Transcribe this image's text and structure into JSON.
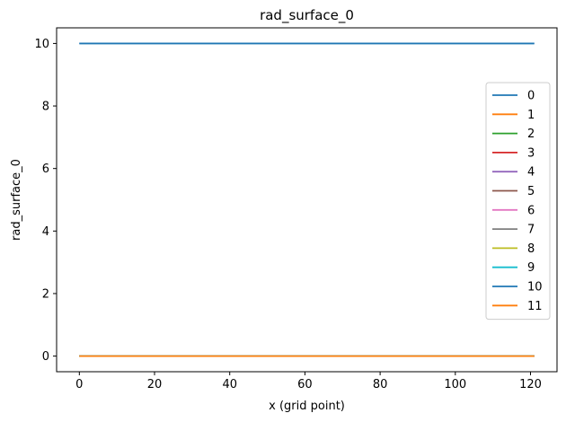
{
  "chart_data": {
    "type": "line",
    "title": "rad_surface_0",
    "xlabel": "x (grid point)",
    "ylabel": "rad_surface_0",
    "xlim": [
      -6.05,
      127.05
    ],
    "ylim": [
      -0.5,
      10.5
    ],
    "xticks": [
      0,
      20,
      40,
      60,
      80,
      100,
      120
    ],
    "yticks": [
      0,
      2,
      4,
      6,
      8,
      10
    ],
    "grid": false,
    "legend_position": "center-right",
    "series": [
      {
        "name": "0",
        "color": "#1f77b4",
        "x": [
          0,
          121
        ],
        "y": [
          10,
          10
        ]
      },
      {
        "name": "1",
        "color": "#ff7f0e",
        "x": [
          0,
          121
        ],
        "y": [
          0,
          0
        ]
      },
      {
        "name": "2",
        "color": "#2ca02c",
        "x": [
          0,
          121
        ],
        "y": [
          0,
          0
        ]
      },
      {
        "name": "3",
        "color": "#d62728",
        "x": [
          0,
          121
        ],
        "y": [
          0,
          0
        ]
      },
      {
        "name": "4",
        "color": "#9467bd",
        "x": [
          0,
          121
        ],
        "y": [
          0,
          0
        ]
      },
      {
        "name": "5",
        "color": "#8c564b",
        "x": [
          0,
          121
        ],
        "y": [
          0,
          0
        ]
      },
      {
        "name": "6",
        "color": "#e377c2",
        "x": [
          0,
          121
        ],
        "y": [
          0,
          0
        ]
      },
      {
        "name": "7",
        "color": "#7f7f7f",
        "x": [
          0,
          121
        ],
        "y": [
          0,
          0
        ]
      },
      {
        "name": "8",
        "color": "#bcbd22",
        "x": [
          0,
          121
        ],
        "y": [
          0,
          0
        ]
      },
      {
        "name": "9",
        "color": "#17becf",
        "x": [
          0,
          121
        ],
        "y": [
          0,
          0
        ]
      },
      {
        "name": "10",
        "color": "#1f77b4",
        "x": [
          0,
          121
        ],
        "y": [
          10,
          10
        ]
      },
      {
        "name": "11",
        "color": "#ff7f0e",
        "x": [
          0,
          121
        ],
        "y": [
          0,
          0
        ]
      }
    ]
  }
}
